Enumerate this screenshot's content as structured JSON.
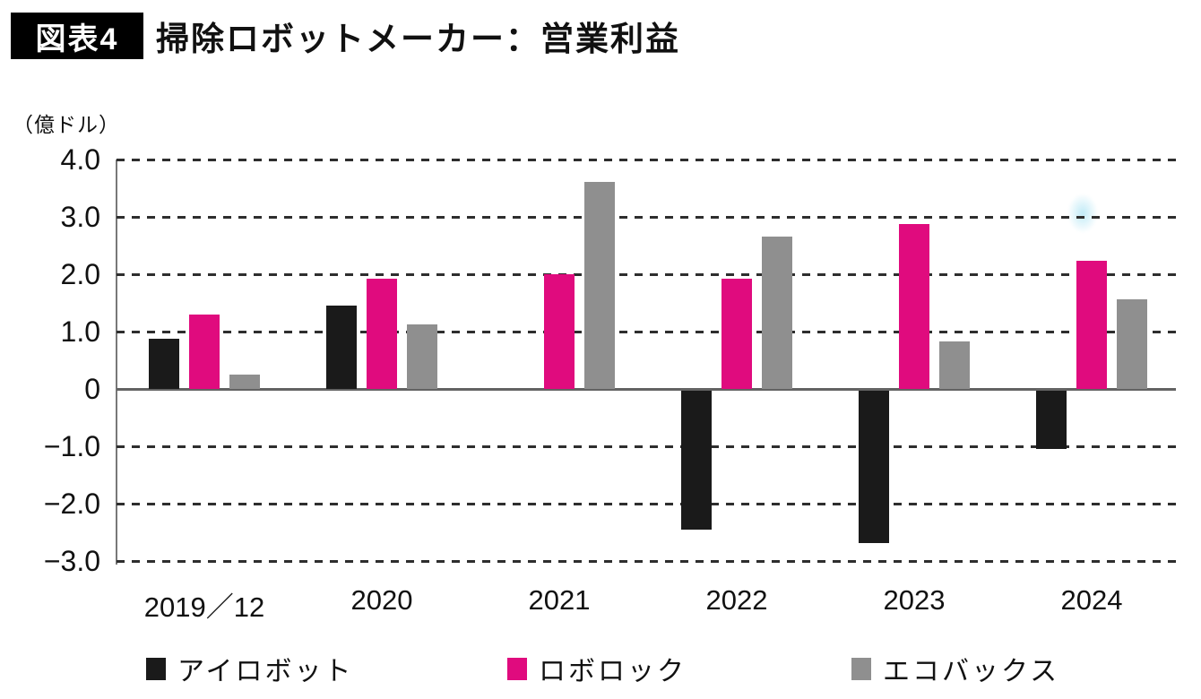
{
  "header": {
    "badge": "図表4",
    "title": "掃除ロボットメーカー：営業利益"
  },
  "chart_data": {
    "type": "bar",
    "title": "掃除ロボットメーカー：営業利益",
    "ylabel": "（億ドル）",
    "xlabel": "",
    "categories": [
      "2019／12",
      "2020",
      "2021",
      "2022",
      "2023",
      "2024"
    ],
    "series": [
      {
        "id": "irobot",
        "name": "アイロボット",
        "color": "#1a1a1a",
        "values": [
          0.87,
          1.46,
          0,
          -2.42,
          -2.65,
          -1.02
        ]
      },
      {
        "id": "roborock",
        "name": "ロボロック",
        "color": "#e00b7e",
        "values": [
          1.29,
          1.92,
          2.0,
          1.92,
          2.88,
          2.24
        ]
      },
      {
        "id": "ecovacs",
        "name": "エコバックス",
        "color": "#8f8f8f",
        "values": [
          0.25,
          1.12,
          3.61,
          2.66,
          0.83,
          1.57
        ]
      }
    ],
    "ylim": [
      -3.0,
      4.0
    ],
    "yticks": [
      {
        "label": "4.0",
        "value": 4
      },
      {
        "label": "3.0",
        "value": 3
      },
      {
        "label": "2.0",
        "value": 2
      },
      {
        "label": "1.0",
        "value": 1
      },
      {
        "label": "0",
        "value": 0
      },
      {
        "label": "−1.0",
        "value": -1
      },
      {
        "label": "−2.0",
        "value": -2
      },
      {
        "label": "−3.0",
        "value": -3
      }
    ],
    "grid": "horizontal-dashed",
    "legend_position": "bottom"
  }
}
